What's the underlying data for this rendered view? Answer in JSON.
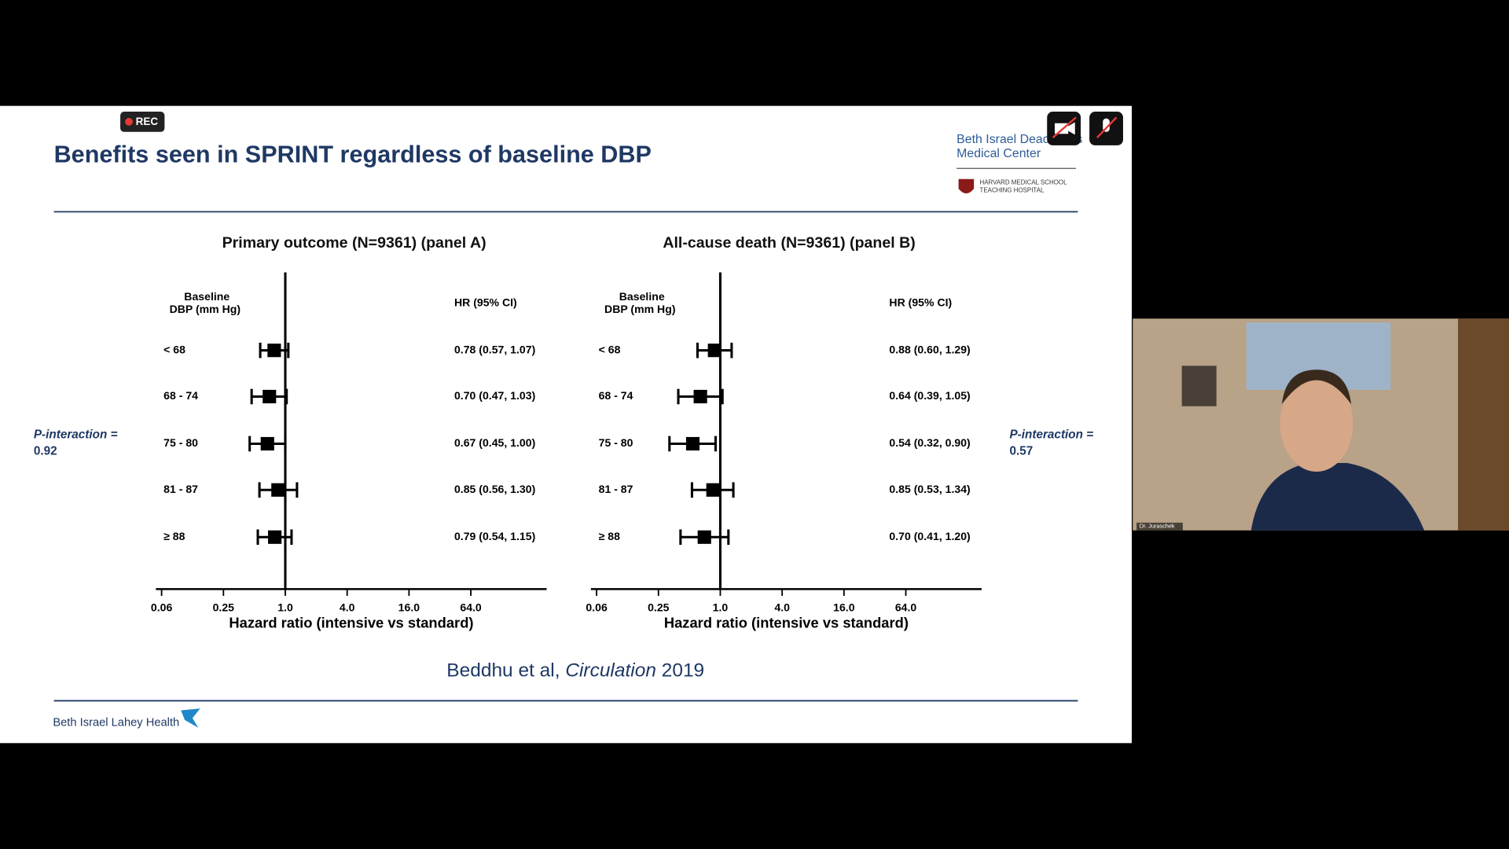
{
  "ui": {
    "rec": "REC",
    "participant": "Dr. Juraschek"
  },
  "slide": {
    "title": "Benefits seen in SPRINT regardless of baseline DBP",
    "logo_top": [
      "Beth Israel Deaconess",
      "Medical Center"
    ],
    "harvard": [
      "HARVARD MEDICAL SCHOOL",
      "TEACHING HOSPITAL"
    ],
    "citation": {
      "author": "Beddhu et al,",
      "journal": "Circulation",
      "year": "2019"
    },
    "footer_logo": "Beth Israel Lahey Health"
  },
  "chart_data": [
    {
      "type": "forest",
      "title": "Primary outcome (N=9361) (panel A)",
      "row_header": [
        "Baseline",
        "DBP (mm Hg)"
      ],
      "value_header": "HR (95% CI)",
      "categories": [
        "< 68",
        "68 - 74",
        "75 - 80",
        "81 - 87",
        "≥ 88"
      ],
      "values": [
        0.78,
        0.7,
        0.67,
        0.85,
        0.79
      ],
      "lower": [
        0.57,
        0.47,
        0.45,
        0.56,
        0.54
      ],
      "upper": [
        1.07,
        1.03,
        1.0,
        1.3,
        1.15
      ],
      "value_labels": [
        "0.78 (0.57, 1.07)",
        "0.70 (0.47, 1.03)",
        "0.67 (0.45, 1.00)",
        "0.85 (0.56, 1.30)",
        "0.79 (0.54, 1.15)"
      ],
      "reference": 1,
      "log_x": true,
      "xlim": [
        0.055,
        350
      ],
      "xticks": [
        {
          "value": 0.0625,
          "label": "0.06"
        },
        0.25,
        {
          "value": 1,
          "label": "1.0"
        },
        {
          "value": 4,
          "label": "4.0"
        },
        {
          "value": 16,
          "label": "16.0"
        },
        {
          "value": 64,
          "label": "64.0"
        }
      ],
      "xlabel": "Hazard ratio (intensive vs standard)",
      "p_interaction": {
        "label": "P-interaction =",
        "value": 0.92
      },
      "color": "#000000"
    },
    {
      "type": "forest",
      "title": "All-cause death (N=9361) (panel B)",
      "row_header": [
        "Baseline",
        "DBP (mm Hg)"
      ],
      "value_header": "HR (95% CI)",
      "categories": [
        "< 68",
        "68 - 74",
        "75 - 80",
        "81 - 87",
        "≥ 88"
      ],
      "values": [
        0.88,
        0.64,
        0.54,
        0.85,
        0.7
      ],
      "lower": [
        0.6,
        0.39,
        0.32,
        0.53,
        0.41
      ],
      "upper": [
        1.29,
        1.05,
        0.9,
        1.34,
        1.2
      ],
      "value_labels": [
        "0.88 (0.60, 1.29)",
        "0.64 (0.39, 1.05)",
        "0.54 (0.32, 0.90)",
        "0.85 (0.53, 1.34)",
        "0.70 (0.41, 1.20)"
      ],
      "reference": 1,
      "log_x": true,
      "xlim": [
        0.055,
        350
      ],
      "xticks": [
        {
          "value": 0.0625,
          "label": "0.06"
        },
        0.25,
        {
          "value": 1,
          "label": "1.0"
        },
        {
          "value": 4,
          "label": "4.0"
        },
        {
          "value": 16,
          "label": "16.0"
        },
        {
          "value": 64,
          "label": "64.0"
        }
      ],
      "xlabel": "Hazard ratio (intensive vs standard)",
      "p_interaction": {
        "label": "P-interaction =",
        "value": 0.57
      },
      "color": "#000000"
    }
  ]
}
